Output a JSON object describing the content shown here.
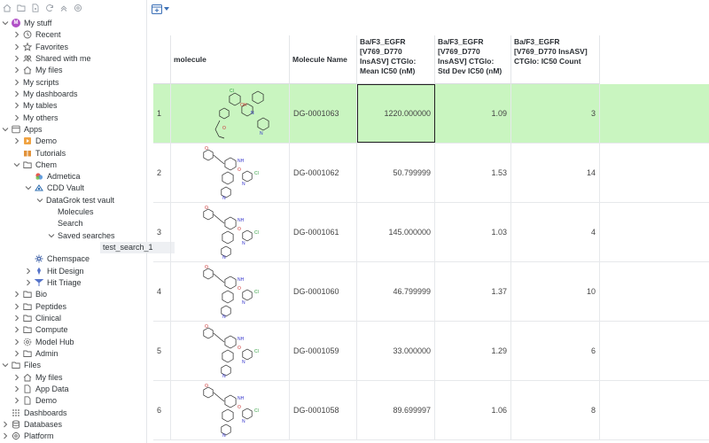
{
  "sidebar": {
    "toolbar_icons": [
      "home-icon",
      "folder-open-icon",
      "new-file-icon",
      "sync-icon",
      "collapse-icon",
      "settings-icon"
    ],
    "tree": [
      {
        "label": "My stuff",
        "icon": "avatar-icon",
        "level": 0,
        "chevron": "down"
      },
      {
        "label": "Recent",
        "icon": "clock-icon",
        "level": 1,
        "chevron": "right"
      },
      {
        "label": "Favorites",
        "icon": "star-icon",
        "level": 1,
        "chevron": "right"
      },
      {
        "label": "Shared with me",
        "icon": "shared-icon",
        "level": 1,
        "chevron": "right"
      },
      {
        "label": "My files",
        "icon": "home-files-icon",
        "level": 1,
        "chevron": "right"
      },
      {
        "label": "My scripts",
        "icon": "",
        "level": 1,
        "chevron": "right"
      },
      {
        "label": "My dashboards",
        "icon": "",
        "level": 1,
        "chevron": "right"
      },
      {
        "label": "My tables",
        "icon": "",
        "level": 1,
        "chevron": "right"
      },
      {
        "label": "My others",
        "icon": "",
        "level": 1,
        "chevron": "right"
      },
      {
        "label": "Apps",
        "icon": "apps-icon",
        "level": 0,
        "chevron": "down"
      },
      {
        "label": "Demo",
        "icon": "demo-icon",
        "level": 1,
        "chevron": "right"
      },
      {
        "label": "Tutorials",
        "icon": "tutorials-icon",
        "level": 1,
        "chevron": ""
      },
      {
        "label": "Chem",
        "icon": "folder-icon",
        "level": 1,
        "chevron": "down"
      },
      {
        "label": "Admetica",
        "icon": "admetica-icon",
        "level": 2,
        "chevron": ""
      },
      {
        "label": "CDD Vault",
        "icon": "cdd-vault-icon",
        "level": 2,
        "chevron": "down"
      },
      {
        "label": "DataGrok test vault",
        "icon": "",
        "level": 3,
        "chevron": "down"
      },
      {
        "label": "Molecules",
        "icon": "",
        "level": 4,
        "chevron": ""
      },
      {
        "label": "Search",
        "icon": "",
        "level": 4,
        "chevron": ""
      },
      {
        "label": "Saved searches",
        "icon": "",
        "level": 4,
        "chevron": "down"
      },
      {
        "label": "test_search_1",
        "icon": "",
        "level": 5,
        "chevron": "",
        "selected": true
      },
      {
        "label": "Chemspace",
        "icon": "chemspace-icon",
        "level": 2,
        "chevron": ""
      },
      {
        "label": "Hit Design",
        "icon": "hit-design-icon",
        "level": 2,
        "chevron": "right"
      },
      {
        "label": "Hit Triage",
        "icon": "hit-triage-icon",
        "level": 2,
        "chevron": "right"
      },
      {
        "label": "Bio",
        "icon": "folder-icon",
        "level": 1,
        "chevron": "right"
      },
      {
        "label": "Peptides",
        "icon": "folder-icon",
        "level": 1,
        "chevron": "right"
      },
      {
        "label": "Clinical",
        "icon": "folder-icon",
        "level": 1,
        "chevron": "right"
      },
      {
        "label": "Compute",
        "icon": "folder-icon",
        "level": 1,
        "chevron": "right"
      },
      {
        "label": "Model Hub",
        "icon": "model-hub-icon",
        "level": 1,
        "chevron": "right"
      },
      {
        "label": "Admin",
        "icon": "folder-icon",
        "level": 1,
        "chevron": "right"
      },
      {
        "label": "Files",
        "icon": "folder-icon",
        "level": 0,
        "chevron": "down"
      },
      {
        "label": "My files",
        "icon": "home-files-icon",
        "level": 1,
        "chevron": "right"
      },
      {
        "label": "App Data",
        "icon": "file-icon",
        "level": 1,
        "chevron": "right"
      },
      {
        "label": "Demo",
        "icon": "file-icon",
        "level": 1,
        "chevron": "right"
      },
      {
        "label": "Dashboards",
        "icon": "dashboards-icon",
        "level": 0,
        "chevron": ""
      },
      {
        "label": "Databases",
        "icon": "database-icon",
        "level": 0,
        "chevron": "right"
      },
      {
        "label": "Platform",
        "icon": "platform-icon",
        "level": 0,
        "chevron": "right"
      }
    ]
  },
  "toolbar": {
    "add_view_icon": "add-viewer-icon",
    "caret_icon": "caret-down-icon"
  },
  "grid": {
    "columns": [
      {
        "key": "row",
        "label": ""
      },
      {
        "key": "molecule",
        "label": "molecule"
      },
      {
        "key": "name",
        "label": "Molecule Name"
      },
      {
        "key": "mean",
        "label": "Ba/F3_EGFR [V769_D770 InsASV] CTGlo: Mean IC50 (nM)"
      },
      {
        "key": "std",
        "label": "Ba/F3_EGFR [V769_D770 InsASV] CTGlo: Std Dev IC50 (nM)"
      },
      {
        "key": "count",
        "label": "Ba/F3_EGFR [V769_D770 InsASV] CTGlo: IC50 Count"
      }
    ],
    "rows": [
      {
        "row": "1",
        "name": "DG-0001063",
        "mean": "1220.000000",
        "std": "1.09",
        "count": "3",
        "current": true
      },
      {
        "row": "2",
        "name": "DG-0001062",
        "mean": "50.799999",
        "std": "1.53",
        "count": "14"
      },
      {
        "row": "3",
        "name": "DG-0001061",
        "mean": "145.000000",
        "std": "1.03",
        "count": "4"
      },
      {
        "row": "4",
        "name": "DG-0001060",
        "mean": "46.799999",
        "std": "1.37",
        "count": "10"
      },
      {
        "row": "5",
        "name": "DG-0001059",
        "mean": "33.000000",
        "std": "1.29",
        "count": "6"
      },
      {
        "row": "6",
        "name": "DG-0001058",
        "mean": "89.699997",
        "std": "1.06",
        "count": "8"
      }
    ],
    "focused_cell": {
      "row": 0,
      "column": "mean"
    },
    "colors": {
      "current_row": "#c9f5c0",
      "grid_line": "#e6e8eb"
    }
  }
}
